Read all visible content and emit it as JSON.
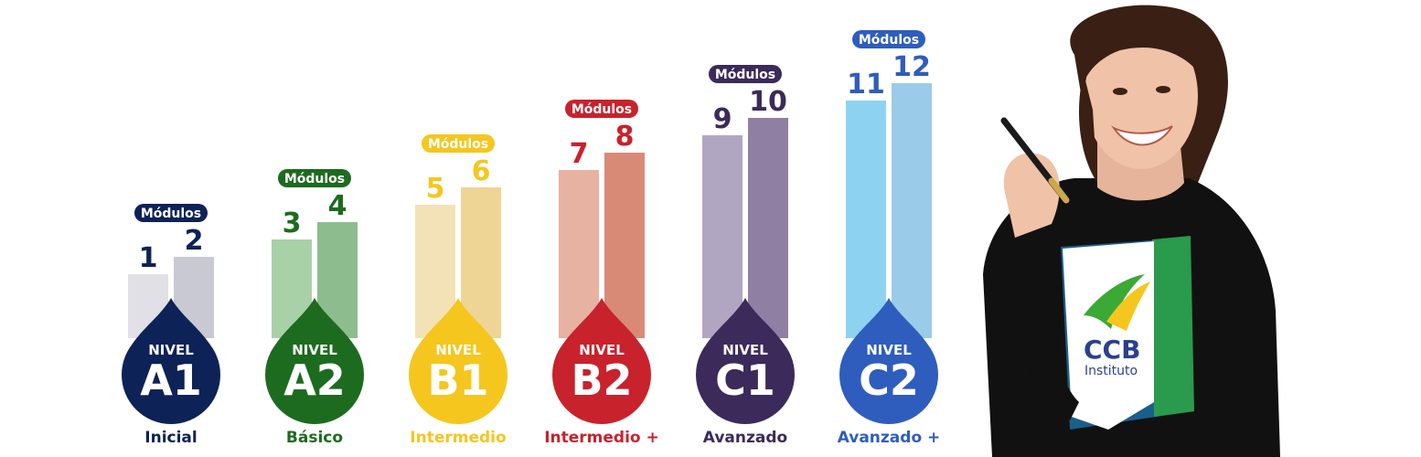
{
  "modules_label": "Módulos",
  "nivel_label": "NIVEL",
  "levels": [
    {
      "code": "A1",
      "name": "Inicial",
      "modules": [
        "1",
        "2"
      ],
      "color": "#0d2257",
      "bar_light": "#e0e0e6",
      "bar_dark": "#c9c9d3",
      "name_color": "#0d2257"
    },
    {
      "code": "A2",
      "name": "Básico",
      "modules": [
        "3",
        "4"
      ],
      "color": "#1d6b1f",
      "bar_light": "#a8d1a8",
      "bar_dark": "#8dbd8e",
      "name_color": "#1d6b1f"
    },
    {
      "code": "B1",
      "name": "Intermedio",
      "modules": [
        "5",
        "6"
      ],
      "color": "#f5c61e",
      "bar_light": "#f3e2b5",
      "bar_dark": "#efd595",
      "name_color": "#f5c61e"
    },
    {
      "code": "B2",
      "name": "Intermedio +",
      "modules": [
        "7",
        "8"
      ],
      "color": "#c8222d",
      "bar_light": "#e8b2a2",
      "bar_dark": "#d88a76",
      "name_color": "#c8222d"
    },
    {
      "code": "C1",
      "name": "Avanzado",
      "modules": [
        "9",
        "10"
      ],
      "color": "#3c2a5b",
      "bar_light": "#b0a6c2",
      "bar_dark": "#8f80a3",
      "name_color": "#3c2a5b"
    },
    {
      "code": "C2",
      "name": "Avanzado +",
      "modules": [
        "11",
        "12"
      ],
      "color": "#2f5dbd",
      "bar_light": "#8ed2f2",
      "bar_dark": "#9acbe8",
      "name_color": "#2f5dbd"
    }
  ],
  "brand": {
    "logo_text": "CCB",
    "logo_subtext": "Instituto",
    "logo_color": "#2a3f8f",
    "accent_green": "#3aa935",
    "accent_yellow": "#f5c61e"
  }
}
